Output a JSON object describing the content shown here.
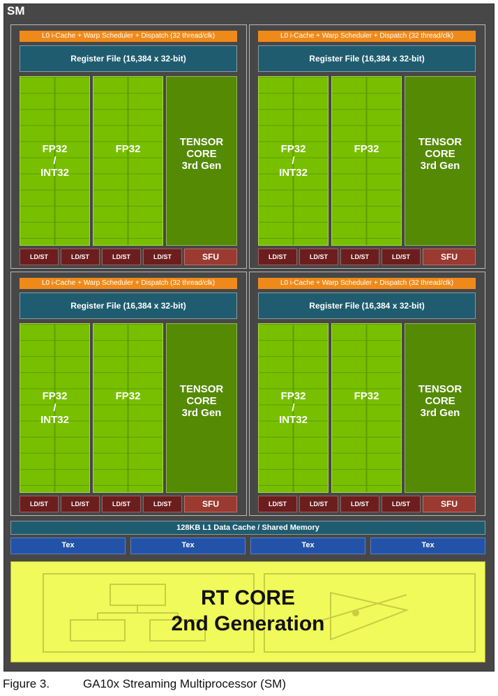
{
  "sm_title": "SM",
  "partitions": [
    {
      "warp": "L0 i-Cache + Warp Scheduler + Dispatch (32 thread/clk)",
      "register_file": "Register File (16,384 x 32-bit)",
      "fp32_int32": [
        "FP32",
        "/",
        "INT32"
      ],
      "fp32": "FP32",
      "tensor": [
        "TENSOR",
        "CORE",
        "3rd Gen"
      ],
      "ldst": [
        "LD/ST",
        "LD/ST",
        "LD/ST",
        "LD/ST"
      ],
      "sfu": "SFU"
    },
    {
      "warp": "L0 i-Cache + Warp Scheduler + Dispatch (32 thread/clk)",
      "register_file": "Register File (16,384 x 32-bit)",
      "fp32_int32": [
        "FP32",
        "/",
        "INT32"
      ],
      "fp32": "FP32",
      "tensor": [
        "TENSOR",
        "CORE",
        "3rd Gen"
      ],
      "ldst": [
        "LD/ST",
        "LD/ST",
        "LD/ST",
        "LD/ST"
      ],
      "sfu": "SFU"
    },
    {
      "warp": "L0 i-Cache + Warp Scheduler + Dispatch (32 thread/clk)",
      "register_file": "Register File (16,384 x 32-bit)",
      "fp32_int32": [
        "FP32",
        "/",
        "INT32"
      ],
      "fp32": "FP32",
      "tensor": [
        "TENSOR",
        "CORE",
        "3rd Gen"
      ],
      "ldst": [
        "LD/ST",
        "LD/ST",
        "LD/ST",
        "LD/ST"
      ],
      "sfu": "SFU"
    },
    {
      "warp": "L0 i-Cache + Warp Scheduler + Dispatch (32 thread/clk)",
      "register_file": "Register File (16,384 x 32-bit)",
      "fp32_int32": [
        "FP32",
        "/",
        "INT32"
      ],
      "fp32": "FP32",
      "tensor": [
        "TENSOR",
        "CORE",
        "3rd Gen"
      ],
      "ldst": [
        "LD/ST",
        "LD/ST",
        "LD/ST",
        "LD/ST"
      ],
      "sfu": "SFU"
    }
  ],
  "l1_cache": "128KB L1 Data Cache / Shared Memory",
  "tex_units": [
    "Tex",
    "Tex",
    "Tex",
    "Tex"
  ],
  "rt_core": {
    "line1": "RT CORE",
    "line2": "2nd Generation"
  },
  "caption": {
    "number": "Figure 3.",
    "text": "GA10x Streaming Multiprocessor (SM)"
  },
  "colors": {
    "sm_background": "#474747",
    "warp_scheduler": "#ef8a1a",
    "register_file": "#1f5c70",
    "cuda_core": "#78bf00",
    "tensor_core": "#558a05",
    "ldst": "#6c1e1e",
    "sfu": "#9b3a30",
    "tex": "#2253a8",
    "rt_core": "#f0fa5a"
  }
}
